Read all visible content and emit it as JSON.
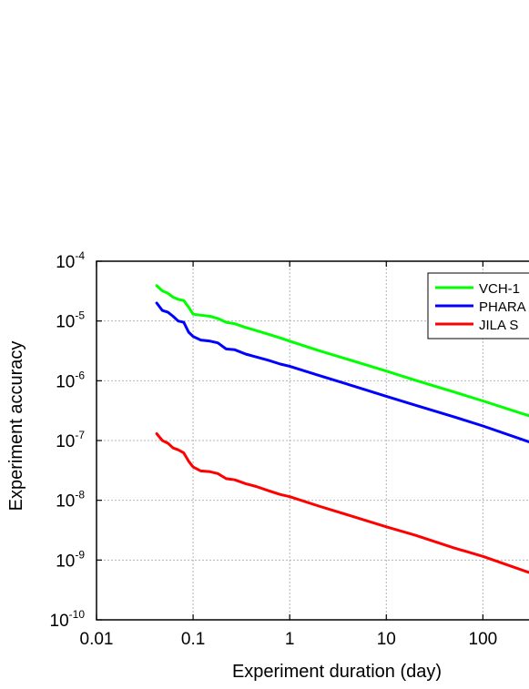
{
  "chart_data": {
    "type": "line",
    "title": "",
    "xlabel": "Experiment duration (day)",
    "ylabel": "Experiment accuracy",
    "x_scale": "log",
    "y_scale": "log",
    "xlim": [
      0.01,
      300
    ],
    "ylim": [
      1e-10,
      0.0001
    ],
    "grid": true,
    "legend_position": "top-right",
    "x_ticks": [
      {
        "value": 0.01,
        "label": "0.01"
      },
      {
        "value": 0.1,
        "label": "0.1"
      },
      {
        "value": 1,
        "label": "1"
      },
      {
        "value": 10,
        "label": "10"
      },
      {
        "value": 100,
        "label": "100"
      }
    ],
    "y_ticks": [
      {
        "value": 1e-10,
        "base": "10",
        "exp": "-10"
      },
      {
        "value": 1e-09,
        "base": "10",
        "exp": "-9"
      },
      {
        "value": 1e-08,
        "base": "10",
        "exp": "-8"
      },
      {
        "value": 1e-07,
        "base": "10",
        "exp": "-7"
      },
      {
        "value": 1e-06,
        "base": "10",
        "exp": "-6"
      },
      {
        "value": 1e-05,
        "base": "10",
        "exp": "-5"
      },
      {
        "value": 0.0001,
        "base": "10",
        "exp": "-4"
      }
    ],
    "series": [
      {
        "name": "VCH-1",
        "color": "#00ff00",
        "x": [
          0.042,
          0.048,
          0.055,
          0.062,
          0.07,
          0.08,
          0.09,
          0.1,
          0.12,
          0.15,
          0.18,
          0.22,
          0.27,
          0.35,
          0.45,
          0.6,
          0.8,
          1,
          2,
          5,
          10,
          20,
          50,
          100,
          300
        ],
        "y": [
          3.9e-05,
          3.2e-05,
          2.9e-05,
          2.5e-05,
          2.3e-05,
          2.2e-05,
          1.7e-05,
          1.3e-05,
          1.25e-05,
          1.2e-05,
          1.1e-05,
          9.5e-06,
          9e-06,
          7.8e-06,
          6.9e-06,
          6e-06,
          5.2e-06,
          4.6e-06,
          3.2e-06,
          2.05e-06,
          1.45e-06,
          1.02e-06,
          6.5e-07,
          4.6e-07,
          2.6e-07
        ]
      },
      {
        "name": "PHARA",
        "color": "#0000ff",
        "x": [
          0.042,
          0.048,
          0.055,
          0.062,
          0.07,
          0.08,
          0.09,
          0.1,
          0.12,
          0.15,
          0.18,
          0.22,
          0.27,
          0.35,
          0.45,
          0.6,
          0.8,
          1,
          2,
          5,
          10,
          20,
          50,
          100,
          300
        ],
        "y": [
          2e-05,
          1.5e-05,
          1.4e-05,
          1.2e-05,
          1e-05,
          9.5e-06,
          6.5e-06,
          5.5e-06,
          4.8e-06,
          4.6e-06,
          4.3e-06,
          3.4e-06,
          3.3e-06,
          2.8e-06,
          2.5e-06,
          2.2e-06,
          1.9e-06,
          1.75e-06,
          1.23e-06,
          7.8e-07,
          5.5e-07,
          3.9e-07,
          2.5e-07,
          1.75e-07,
          9.5e-08
        ]
      },
      {
        "name": "JILA S",
        "color": "#ff0000",
        "x": [
          0.042,
          0.048,
          0.055,
          0.062,
          0.07,
          0.08,
          0.09,
          0.1,
          0.12,
          0.15,
          0.18,
          0.22,
          0.27,
          0.35,
          0.45,
          0.6,
          0.8,
          1,
          2,
          5,
          10,
          20,
          50,
          100,
          300
        ],
        "y": [
          1.3e-07,
          1e-07,
          9e-08,
          7.5e-08,
          7e-08,
          6.2e-08,
          4.5e-08,
          3.6e-08,
          3.1e-08,
          3e-08,
          2.8e-08,
          2.3e-08,
          2.2e-08,
          1.9e-08,
          1.7e-08,
          1.45e-08,
          1.25e-08,
          1.15e-08,
          8e-09,
          5.1e-09,
          3.6e-09,
          2.6e-09,
          1.6e-09,
          1.15e-09,
          6.2e-10
        ]
      }
    ]
  }
}
